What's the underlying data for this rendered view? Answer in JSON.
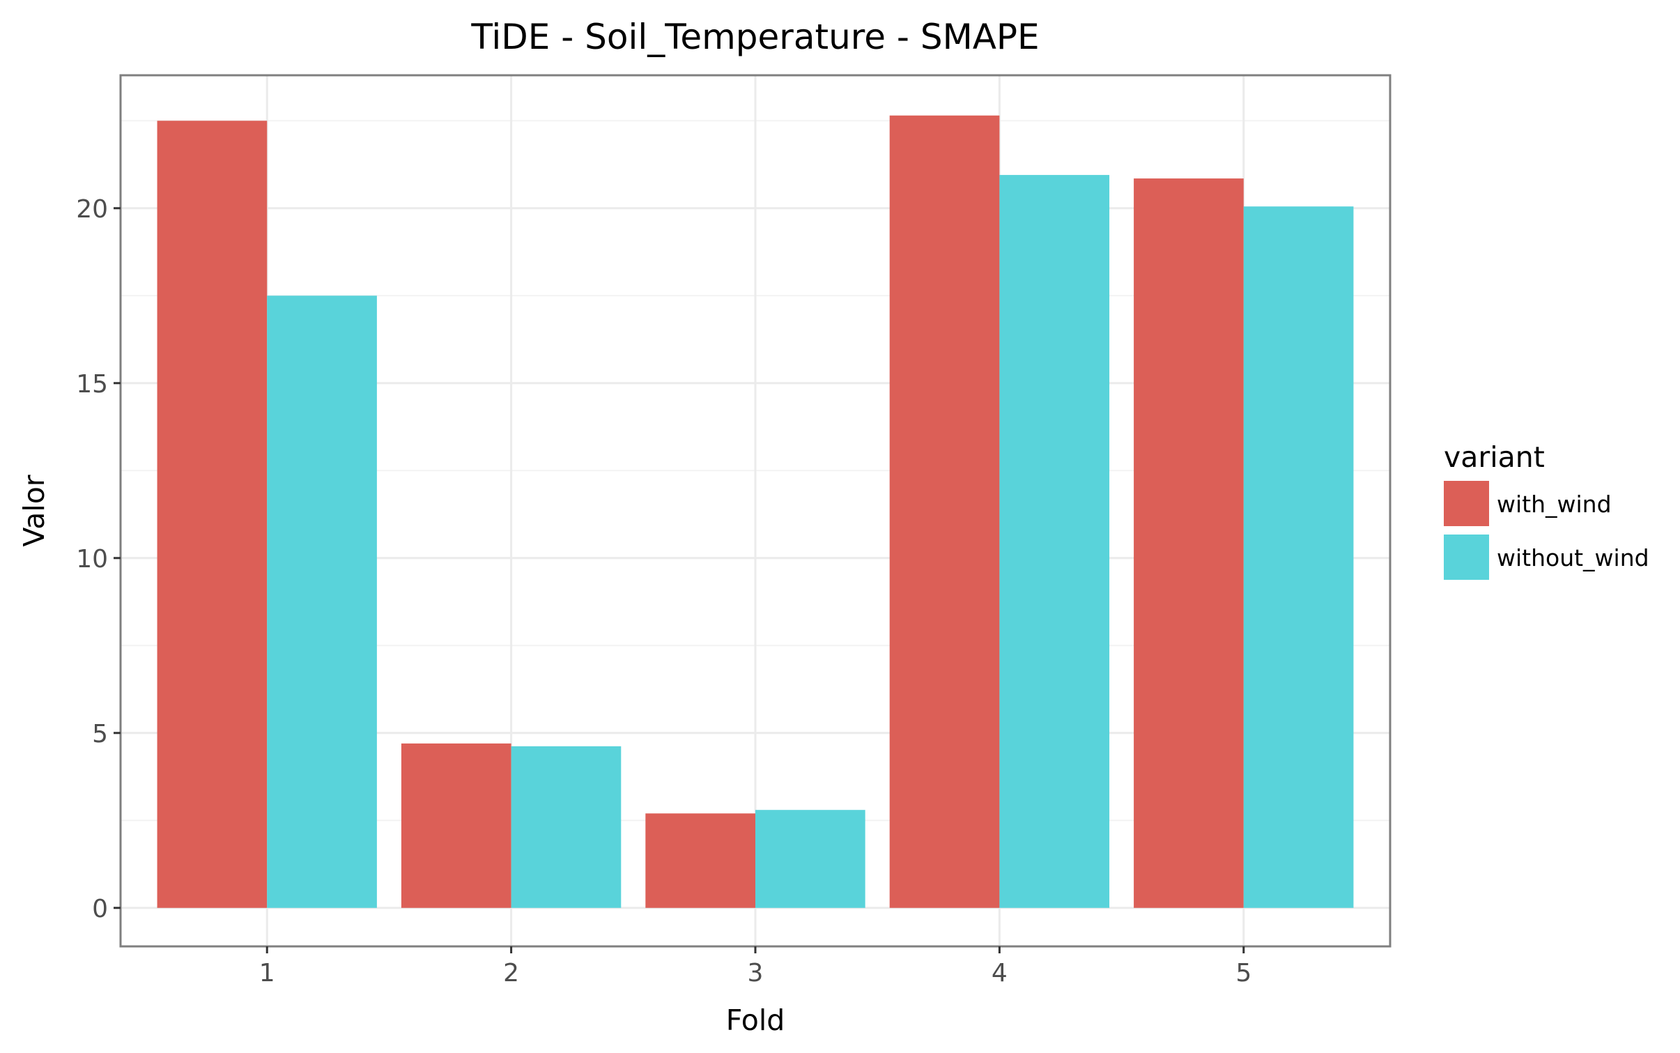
{
  "chart_data": {
    "type": "bar",
    "title": "TiDE - Soil_Temperature - SMAPE",
    "xlabel": "Fold",
    "ylabel": "Valor",
    "categories": [
      "1",
      "2",
      "3",
      "4",
      "5"
    ],
    "series": [
      {
        "name": "with_wind",
        "color": "#dc5f57",
        "values": [
          22.5,
          4.7,
          2.7,
          22.65,
          20.85
        ]
      },
      {
        "name": "without_wind",
        "color": "#59d3da",
        "values": [
          17.5,
          4.62,
          2.8,
          20.95,
          20.05
        ]
      }
    ],
    "ylim": [
      -1.1,
      23.8
    ],
    "yticks": [
      0,
      5,
      10,
      15,
      20
    ],
    "grid": true,
    "legend": {
      "title": "variant",
      "position": "right"
    }
  }
}
